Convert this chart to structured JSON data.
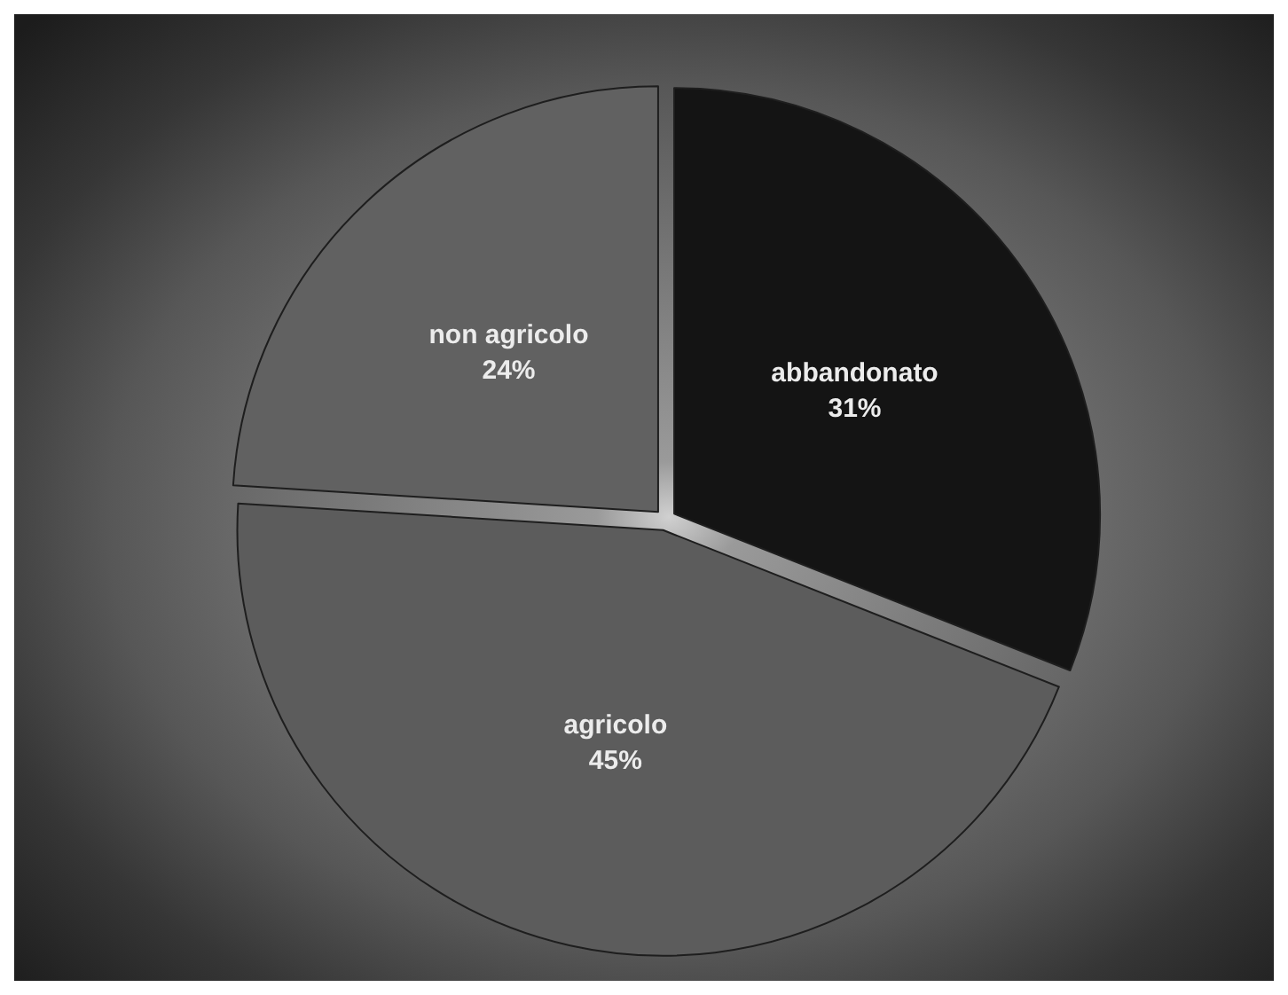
{
  "chart_data": {
    "type": "pie",
    "categories": [
      "abbandonato",
      "agricolo",
      "non agricolo"
    ],
    "values": [
      31,
      45,
      24
    ],
    "value_labels": [
      "31%",
      "45%",
      "24%"
    ],
    "colors": [
      "#141414",
      "#5c5c5c",
      "#616161"
    ]
  }
}
